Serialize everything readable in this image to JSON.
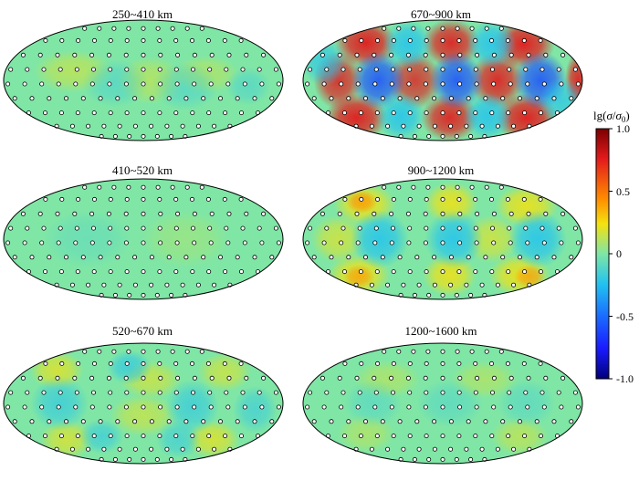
{
  "panels": [
    {
      "title": "250~410 km",
      "pattern": "weak"
    },
    {
      "title": "670~900 km",
      "pattern": "strong"
    },
    {
      "title": "410~520 km",
      "pattern": "flat"
    },
    {
      "title": "900~1200 km",
      "pattern": "medium"
    },
    {
      "title": "520~670 km",
      "pattern": "patchy"
    },
    {
      "title": "1200~1600 km",
      "pattern": "weak2"
    }
  ],
  "colorbar": {
    "label_main": "lg(",
    "label_sigma": "σ",
    "label_slash": "/",
    "label_sigma0": "σ",
    "label_sub": "0",
    "label_close": ")",
    "ticks": [
      "1.0",
      "0.5",
      "0",
      "-0.5",
      "-1.0"
    ],
    "range": [
      -1.0,
      1.0
    ]
  },
  "colors": {
    "background_field": "#7fe6a6",
    "red": "#e31a1c",
    "yellow": "#f5e10f",
    "cyan": "#22c3f0",
    "blue": "#1a4cff",
    "navy": "#00007a",
    "darkred": "#7a0000"
  }
}
